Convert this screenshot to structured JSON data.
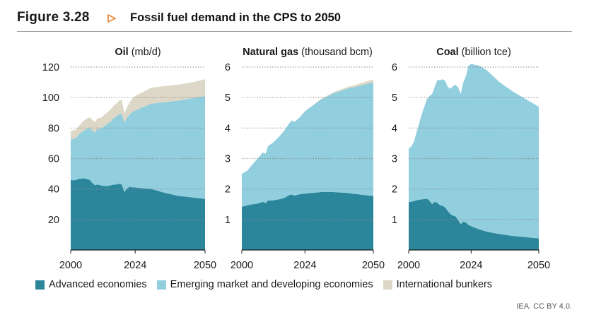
{
  "figure": {
    "number": "Figure 3.28",
    "title": "Fossil fuel demand in the CPS to 2050",
    "source": "IEA. CC BY 4.0."
  },
  "colors": {
    "advanced": "#2b869c",
    "emerging": "#91cede",
    "bunkers": "#dcd7c6",
    "arrow": "#e88b3a",
    "grid": "#8a8a8a",
    "axis": "#1a1a1a"
  },
  "chart_data": [
    {
      "type": "area",
      "stacked": true,
      "title": "Oil",
      "unit": "(mb/d)",
      "xlim": [
        2000,
        2050
      ],
      "ylim": [
        0,
        120
      ],
      "yticks": [
        20,
        40,
        60,
        80,
        100,
        120
      ],
      "xticks": [
        2000,
        2024,
        2050
      ],
      "grid": true,
      "x": [
        2000,
        2001,
        2002,
        2003,
        2004,
        2005,
        2006,
        2007,
        2008,
        2009,
        2010,
        2011,
        2012,
        2013,
        2014,
        2015,
        2016,
        2017,
        2018,
        2019,
        2020,
        2021,
        2022,
        2023,
        2024,
        2030,
        2035,
        2040,
        2045,
        2050
      ],
      "series": [
        {
          "name": "Advanced economies",
          "values": [
            46.0,
            45.7,
            46.0,
            46.6,
            46.8,
            47.0,
            46.5,
            46.0,
            44.0,
            42.5,
            43.0,
            42.5,
            42.0,
            42.0,
            42.0,
            42.5,
            43.0,
            43.0,
            43.5,
            43.0,
            38.0,
            40.5,
            41.5,
            41.0,
            41.0,
            40.0,
            37.5,
            35.5,
            34.5,
            33.5
          ]
        },
        {
          "name": "Emerging market and developing economies",
          "values": [
            26.5,
            27.3,
            27.5,
            29.0,
            30.5,
            31.5,
            33.0,
            34.0,
            34.5,
            34.5,
            36.5,
            37.0,
            38.5,
            40.0,
            41.0,
            42.0,
            43.5,
            44.5,
            45.5,
            46.5,
            45.5,
            46.5,
            47.5,
            49.5,
            50.5,
            56.0,
            59.5,
            62.5,
            65.0,
            67.5
          ]
        },
        {
          "name": "International bunkers",
          "values": [
            5.5,
            5.5,
            5.5,
            5.7,
            6.0,
            6.5,
            6.8,
            7.0,
            7.0,
            6.8,
            7.0,
            7.0,
            7.2,
            7.5,
            7.7,
            8.0,
            8.2,
            8.5,
            8.8,
            9.0,
            6.0,
            7.0,
            8.0,
            9.0,
            9.5,
            10.5,
            10.5,
            10.5,
            10.5,
            11.0
          ]
        }
      ]
    },
    {
      "type": "area",
      "stacked": true,
      "title": "Natural gas",
      "unit": "(thousand bcm)",
      "xlim": [
        2000,
        2050
      ],
      "ylim": [
        0,
        6
      ],
      "yticks": [
        1,
        2,
        3,
        4,
        5,
        6
      ],
      "xticks": [
        2000,
        2024,
        2050
      ],
      "grid": true,
      "x": [
        2000,
        2002,
        2004,
        2006,
        2008,
        2009,
        2010,
        2012,
        2014,
        2016,
        2018,
        2019,
        2020,
        2022,
        2024,
        2030,
        2035,
        2040,
        2045,
        2050
      ],
      "series": [
        {
          "name": "Advanced economies",
          "values": [
            1.42,
            1.46,
            1.5,
            1.52,
            1.58,
            1.54,
            1.62,
            1.63,
            1.66,
            1.7,
            1.8,
            1.82,
            1.78,
            1.83,
            1.85,
            1.9,
            1.9,
            1.87,
            1.82,
            1.77
          ]
        },
        {
          "name": "Emerging market and developing economies",
          "values": [
            1.08,
            1.14,
            1.3,
            1.48,
            1.62,
            1.62,
            1.79,
            1.9,
            2.04,
            2.2,
            2.35,
            2.43,
            2.42,
            2.52,
            2.7,
            3.03,
            3.25,
            3.42,
            3.57,
            3.73
          ]
        },
        {
          "name": "International bunkers",
          "values": [
            0.0,
            0.0,
            0.0,
            0.0,
            0.0,
            0.0,
            0.0,
            0.0,
            0.0,
            0.0,
            0.0,
            0.0,
            0.0,
            0.0,
            0.0,
            0.02,
            0.03,
            0.05,
            0.07,
            0.1
          ]
        }
      ]
    },
    {
      "type": "area",
      "stacked": true,
      "title": "Coal",
      "unit": "(billion tce)",
      "xlim": [
        2000,
        2050
      ],
      "ylim": [
        0,
        6
      ],
      "yticks": [
        1,
        2,
        3,
        4,
        5,
        6
      ],
      "xticks": [
        2000,
        2024,
        2050
      ],
      "grid": true,
      "x": [
        2000,
        2001,
        2002,
        2003,
        2004,
        2005,
        2006,
        2007,
        2008,
        2009,
        2010,
        2011,
        2012,
        2013,
        2014,
        2015,
        2016,
        2017,
        2018,
        2019,
        2020,
        2021,
        2022,
        2023,
        2024,
        2027,
        2030,
        2035,
        2040,
        2045,
        2050
      ],
      "series": [
        {
          "name": "Advanced economies",
          "values": [
            1.58,
            1.58,
            1.6,
            1.63,
            1.65,
            1.66,
            1.67,
            1.68,
            1.62,
            1.5,
            1.58,
            1.55,
            1.47,
            1.45,
            1.4,
            1.28,
            1.18,
            1.13,
            1.1,
            0.98,
            0.85,
            0.93,
            0.9,
            0.82,
            0.78,
            0.68,
            0.6,
            0.52,
            0.46,
            0.42,
            0.38
          ]
        },
        {
          "name": "Emerging market and developing economies",
          "values": [
            1.74,
            1.82,
            1.95,
            2.22,
            2.5,
            2.79,
            3.03,
            3.27,
            3.43,
            3.62,
            3.77,
            4.02,
            4.1,
            4.15,
            4.15,
            4.07,
            4.11,
            4.24,
            4.32,
            4.35,
            4.27,
            4.57,
            4.8,
            5.23,
            5.32,
            5.37,
            5.3,
            4.98,
            4.74,
            4.53,
            4.32
          ]
        },
        {
          "name": "International bunkers",
          "values": [
            0,
            0,
            0,
            0,
            0,
            0,
            0,
            0,
            0,
            0,
            0,
            0,
            0,
            0,
            0,
            0,
            0,
            0,
            0,
            0,
            0,
            0,
            0,
            0,
            0,
            0,
            0,
            0,
            0,
            0,
            0
          ]
        }
      ]
    }
  ],
  "legend": [
    {
      "label": "Advanced economies",
      "color_key": "advanced"
    },
    {
      "label": "Emerging market and developing economies",
      "color_key": "emerging"
    },
    {
      "label": "International bunkers",
      "color_key": "bunkers"
    }
  ]
}
